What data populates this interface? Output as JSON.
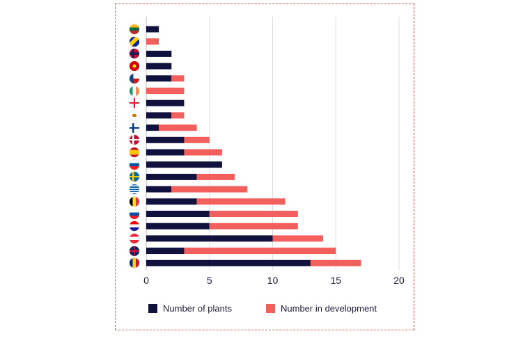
{
  "chart_data": {
    "type": "bar",
    "orientation": "horizontal",
    "stacked": true,
    "title": "",
    "xlabel": "",
    "ylabel": "",
    "xlim": [
      0,
      20
    ],
    "xticks": [
      "0",
      "5",
      "10",
      "15",
      "20"
    ],
    "grid": true,
    "legend_position": "bottom",
    "categories": [
      "Lithuania",
      "Bosnia and Herzegovina",
      "Norway",
      "North Macedonia",
      "Czech Republic",
      "Ireland",
      "Georgia",
      "Cyprus",
      "Finland",
      "Denmark",
      "Spain",
      "Slovenia",
      "Sweden",
      "Greece",
      "Belgium",
      "Slovakia",
      "Croatia",
      "Austria",
      "United Kingdom",
      "Romania"
    ],
    "series": [
      {
        "name": "Number of plants",
        "color": "#10123d",
        "values": [
          1,
          0,
          2,
          2,
          2,
          0,
          3,
          2,
          1,
          3,
          3,
          6,
          4,
          2,
          4,
          5,
          5,
          10,
          3,
          13
        ]
      },
      {
        "name": "Number in development",
        "color": "#f25f5c",
        "values": [
          0,
          1,
          0,
          0,
          1,
          3,
          0,
          1,
          3,
          2,
          3,
          0,
          3,
          6,
          7,
          7,
          7,
          4,
          12,
          4
        ]
      }
    ]
  },
  "flag_icons": [
    "lithuania-flag-icon",
    "bosnia-flag-icon",
    "norway-flag-icon",
    "north-macedonia-flag-icon",
    "czech-flag-icon",
    "ireland-flag-icon",
    "georgia-flag-icon",
    "cyprus-flag-icon",
    "finland-flag-icon",
    "denmark-flag-icon",
    "spain-flag-icon",
    "slovenia-flag-icon",
    "sweden-flag-icon",
    "greece-flag-icon",
    "belgium-flag-icon",
    "slovakia-flag-icon",
    "croatia-flag-icon",
    "austria-flag-icon",
    "uk-flag-icon",
    "romania-flag-icon"
  ]
}
